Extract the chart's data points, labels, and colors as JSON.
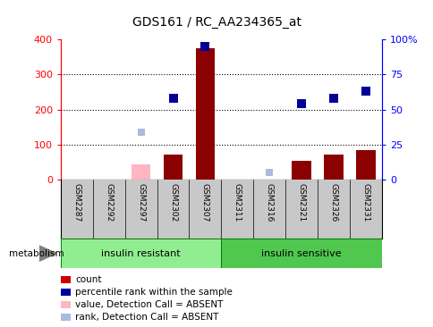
{
  "title": "GDS161 / RC_AA234365_at",
  "samples": [
    "GSM2287",
    "GSM2292",
    "GSM2297",
    "GSM2302",
    "GSM2307",
    "GSM2311",
    "GSM2316",
    "GSM2321",
    "GSM2326",
    "GSM2331"
  ],
  "count_values": [
    0,
    0,
    0,
    72,
    375,
    0,
    0,
    55,
    72,
    85
  ],
  "count_absent_values": [
    0,
    0,
    45,
    0,
    0,
    0,
    0,
    0,
    0,
    0
  ],
  "rank_values": [
    null,
    null,
    null,
    58,
    95,
    null,
    null,
    54,
    58,
    63
  ],
  "rank_absent_values": [
    null,
    null,
    34,
    null,
    null,
    null,
    5,
    null,
    null,
    null
  ],
  "ylim_left": [
    0,
    400
  ],
  "ylim_right": [
    0,
    100
  ],
  "yticks_left": [
    0,
    100,
    200,
    300,
    400
  ],
  "ytick_labels_left": [
    "0",
    "100",
    "200",
    "300",
    "400"
  ],
  "yticks_right": [
    0,
    25,
    50,
    75,
    100
  ],
  "ytick_labels_right": [
    "0",
    "25",
    "50",
    "75",
    "100%"
  ],
  "group1_label": "insulin resistant",
  "group2_label": "insulin sensitive",
  "group1_color": "#90EE90",
  "group2_color": "#50C850",
  "metabolism_label": "metabolism",
  "bar_color_present": "#8B0000",
  "bar_color_absent": "#FFB6C1",
  "rank_color_present": "#000099",
  "rank_color_absent": "#AABBDD",
  "tick_area_color": "#C8C8C8",
  "legend_items": [
    {
      "color": "#CC0000",
      "label": "count"
    },
    {
      "color": "#000099",
      "label": "percentile rank within the sample"
    },
    {
      "color": "#FFB6C1",
      "label": "value, Detection Call = ABSENT"
    },
    {
      "color": "#AABBDD",
      "label": "rank, Detection Call = ABSENT"
    }
  ]
}
